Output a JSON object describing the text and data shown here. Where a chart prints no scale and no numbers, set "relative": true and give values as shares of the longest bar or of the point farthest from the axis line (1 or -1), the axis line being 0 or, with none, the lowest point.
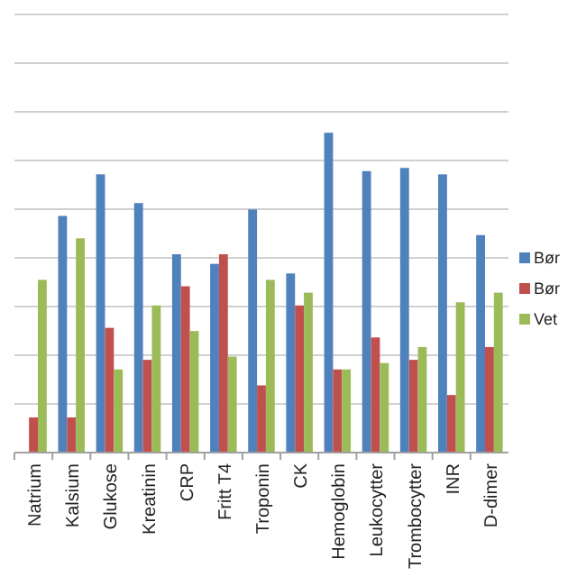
{
  "chart_data": {
    "type": "bar",
    "relative": true,
    "grid": "y",
    "legend": "right",
    "categories": [
      "Natrium",
      "Kalsium",
      "Glukose",
      "Kreatinin",
      "CRP",
      "Fritt T4",
      "Troponin",
      "CK",
      "Hemoglobin",
      "Leukocytter",
      "Trombocytter",
      "INR",
      "D-dimer"
    ],
    "series": [
      {
        "name": "Bør",
        "color": "#4f81bd",
        "values": [
          null,
          0.74,
          0.87,
          0.78,
          0.62,
          0.59,
          0.76,
          0.56,
          1,
          0.88,
          0.89,
          0.87,
          0.68
        ]
      },
      {
        "name": "Bør",
        "color": "#c0504d",
        "values": [
          0.11,
          0.11,
          0.39,
          0.29,
          0.52,
          0.62,
          0.21,
          0.46,
          0.26,
          0.36,
          0.29,
          0.18,
          0.33
        ]
      },
      {
        "name": "Vet",
        "color": "#9bbb59",
        "values": [
          0.54,
          0.67,
          0.26,
          0.46,
          0.38,
          0.3,
          0.54,
          0.5,
          0.26,
          0.28,
          0.33,
          0.47,
          0.5
        ]
      }
    ]
  }
}
